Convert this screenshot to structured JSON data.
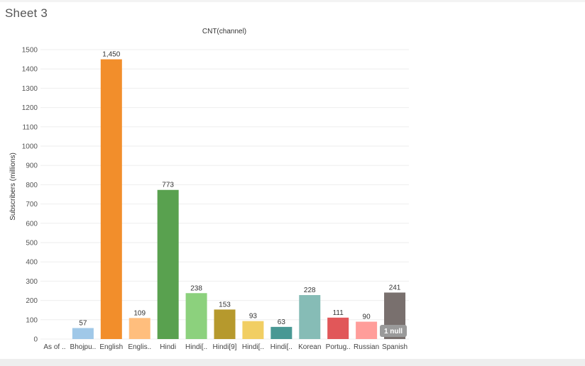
{
  "sheet": {
    "title": "Sheet 3"
  },
  "chart_data": {
    "type": "bar",
    "title": "CNT(channel)",
    "xlabel": "",
    "ylabel": "Subscribers (millions)",
    "ylim": [
      0,
      1500
    ],
    "yticks": [
      0,
      100,
      200,
      300,
      400,
      500,
      600,
      700,
      800,
      900,
      1000,
      1100,
      1200,
      1300,
      1400,
      1500
    ],
    "grid": true,
    "categories": [
      "As of ..",
      "Bhojpu..",
      "English",
      "Englis..",
      "Hindi",
      "Hindi[..",
      "Hindi[9]",
      "Hindi[..",
      "Hindi[..",
      "Korean",
      "Portug..",
      "Russian",
      "Spanish"
    ],
    "values": [
      null,
      57,
      1450,
      109,
      773,
      238,
      153,
      93,
      63,
      228,
      111,
      90,
      241
    ],
    "value_labels": [
      "",
      "57",
      "1,450",
      "109",
      "773",
      "238",
      "153",
      "93",
      "63",
      "228",
      "111",
      "90",
      "241"
    ],
    "colors": [
      "#bbbbbb",
      "#a0c8e8",
      "#f28e2b",
      "#ffbe7d",
      "#59a14f",
      "#8cd17d",
      "#b6992d",
      "#f1ce63",
      "#499894",
      "#86bcb6",
      "#e15759",
      "#ff9d9a",
      "#79706e"
    ],
    "null_indicator": "1 null"
  }
}
